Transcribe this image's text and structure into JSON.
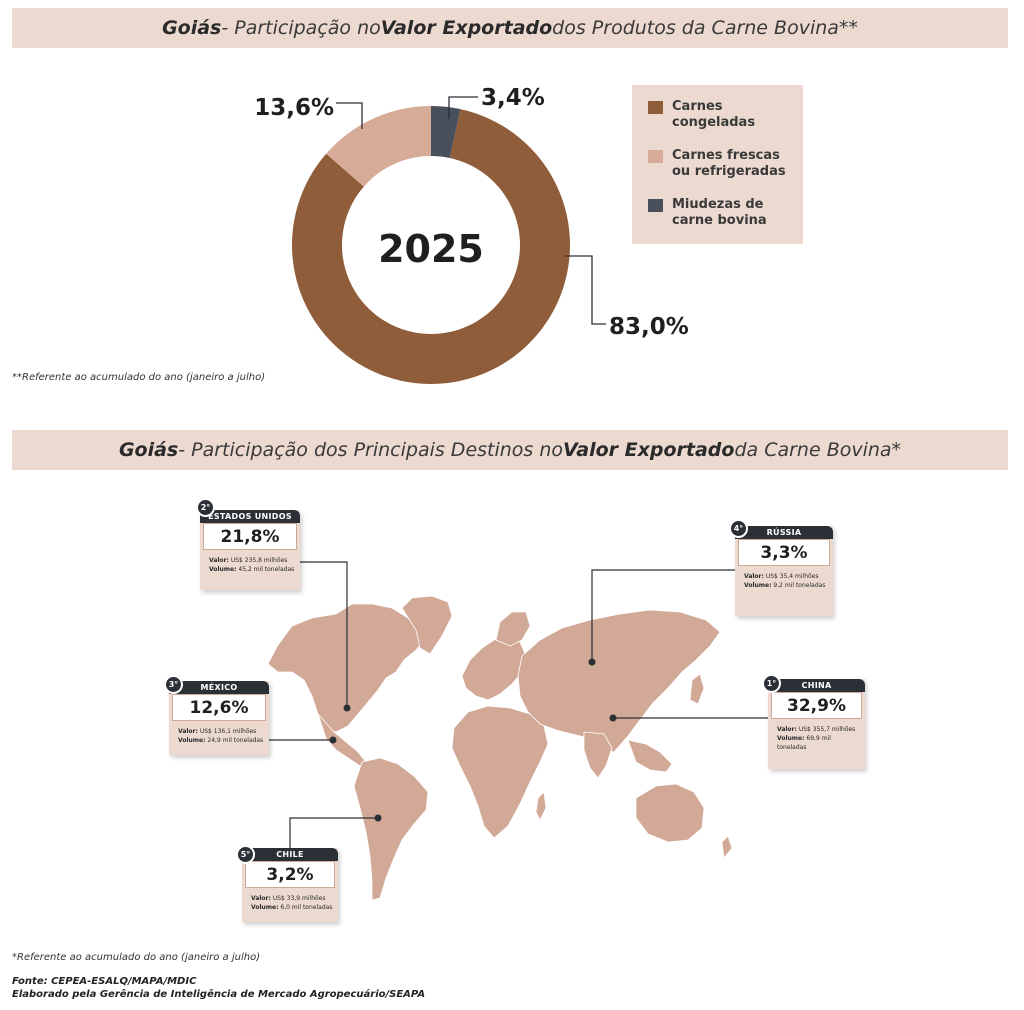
{
  "section1": {
    "title": {
      "region": "Goiás",
      "sep": " - Participação no ",
      "emph": "Valor Exportado",
      "rest": " dos Produtos da Carne Bovina**"
    },
    "footnote": "**Referente ao acumulado do ano (janeiro a julho)"
  },
  "chart_data": [
    {
      "type": "pie",
      "center_label": "2025",
      "categories": [
        "Carnes congeladas",
        "Carnes frescas ou refrigeradas",
        "Miudezas de carne bovina"
      ],
      "values": [
        83.0,
        13.6,
        3.4
      ],
      "value_labels": [
        "83,0%",
        "13,6%",
        "3,4%"
      ],
      "colors": [
        "#8f5d3a",
        "#d6ab97",
        "#4a4f5c"
      ],
      "legend_position": "right"
    }
  ],
  "legend": [
    {
      "label": "Carnes congeladas",
      "color": "#8f5d3a"
    },
    {
      "label": "Carnes frescas ou refrigeradas",
      "color": "#d6ab97"
    },
    {
      "label": "Miudezas de carne bovina",
      "color": "#4a4f5c"
    }
  ],
  "section2": {
    "title": {
      "region": "Goiás",
      "sep": " - Participação dos Principais Destinos no ",
      "emph": "Valor Exportado",
      "rest": " da Carne Bovina*"
    },
    "footnote": "*Referente ao acumulado do ano (janeiro a julho)"
  },
  "destinations": [
    {
      "rank": "1°",
      "country": "CHINA",
      "pct": "32,9%",
      "valor_label": "Valor:",
      "valor": "US$ 355,7 milhões",
      "volume_label": "Volume:",
      "volume": "69,9 mil toneladas"
    },
    {
      "rank": "2°",
      "country": "ESTADOS UNIDOS",
      "pct": "21,8%",
      "valor_label": "Valor:",
      "valor": "US$ 235,8 milhões",
      "volume_label": "Volume:",
      "volume": "45,2 mil toneladas"
    },
    {
      "rank": "3°",
      "country": "MÉXICO",
      "pct": "12,6%",
      "valor_label": "Valor:",
      "valor": "US$ 136,1 milhões",
      "volume_label": "Volume:",
      "volume": "24,9 mil toneladas"
    },
    {
      "rank": "4°",
      "country": "RÚSSIA",
      "pct": "3,3%",
      "valor_label": "Valor:",
      "valor": "US$ 35,4 milhões",
      "volume_label": "Volume:",
      "volume": "9,2 mil toneladas"
    },
    {
      "rank": "5°",
      "country": "CHILE",
      "pct": "3,2%",
      "valor_label": "Valor:",
      "valor": "US$ 33,9 milhões",
      "volume_label": "Volume:",
      "volume": "6,0 mil toneladas"
    }
  ],
  "source": {
    "line1": "Fonte: CEPEA-ESALQ/MAPA/MDIC",
    "line2": "Elaborado pela Gerência de Inteligência de Mercado Agropecuário/SEAPA"
  },
  "map_color": "#d2a896"
}
